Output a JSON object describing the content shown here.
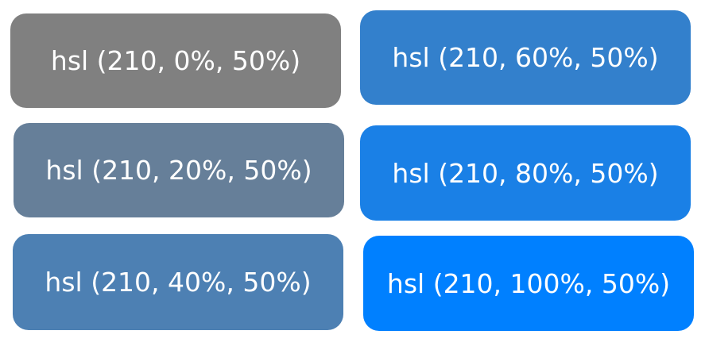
{
  "swatches": [
    {
      "id": "swatch-0",
      "label": "hsl (210, 0%, 50%)",
      "color": "#808080"
    },
    {
      "id": "swatch-20",
      "label": "hsl (210, 20%, 50%)",
      "color": "#667f99"
    },
    {
      "id": "swatch-40",
      "label": "hsl (210, 40%, 50%)",
      "color": "#4d80b3"
    },
    {
      "id": "swatch-60",
      "label": "hsl (210, 60%, 50%)",
      "color": "#3380cc"
    },
    {
      "id": "swatch-80",
      "label": "hsl (210, 80%, 50%)",
      "color": "#1a80e6"
    },
    {
      "id": "swatch-100",
      "label": "hsl (210, 100%, 50%)",
      "color": "#0080ff"
    }
  ]
}
